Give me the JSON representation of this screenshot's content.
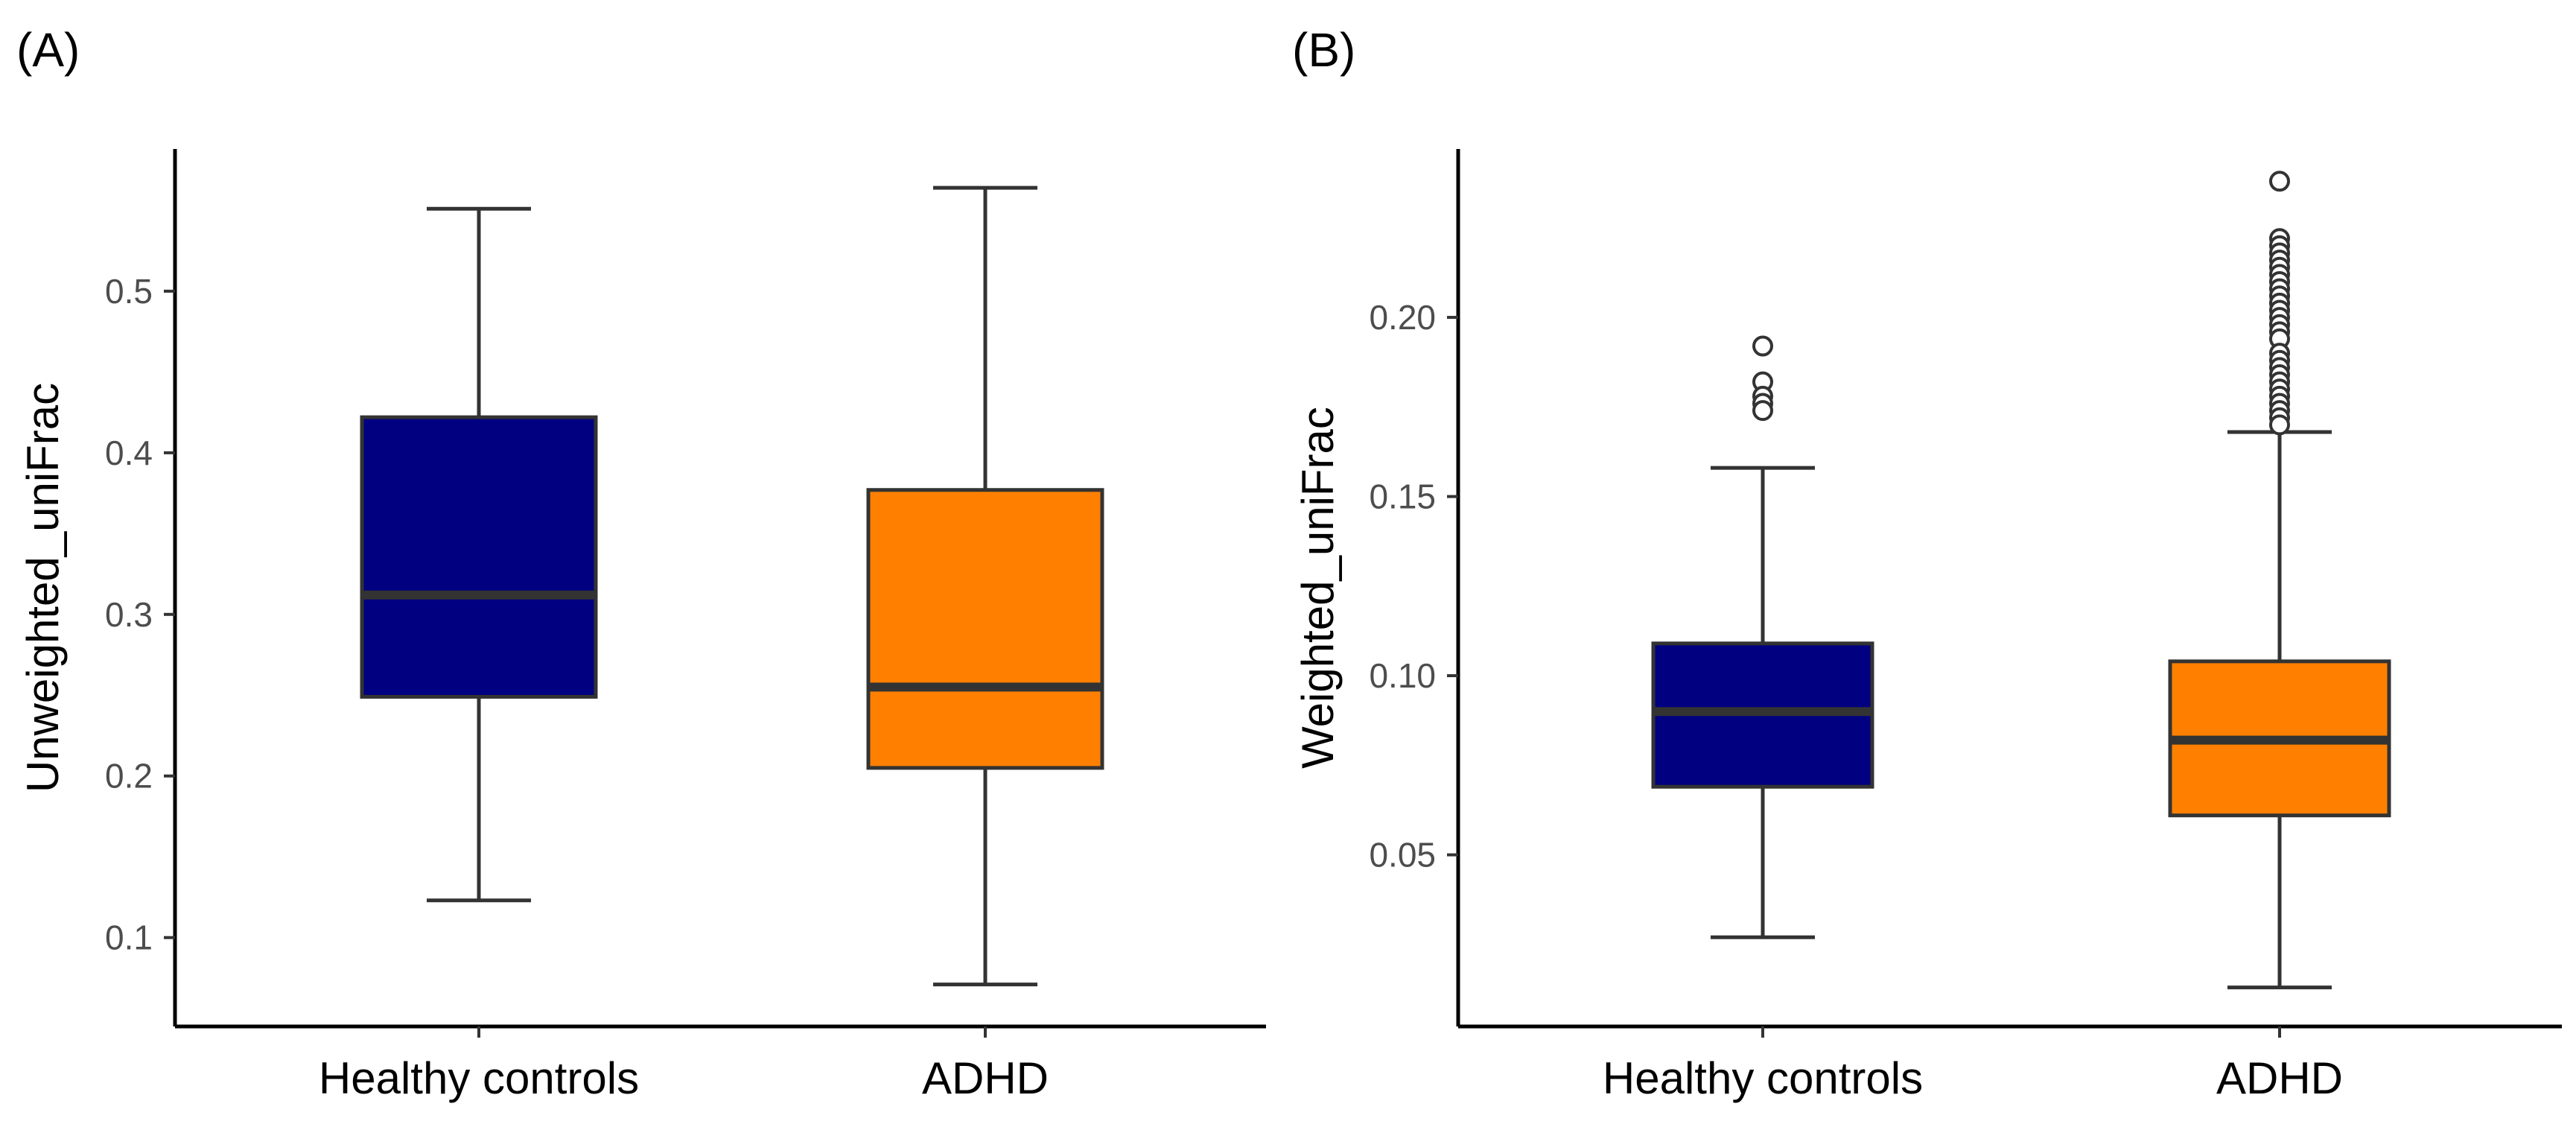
{
  "panels": [
    {
      "label": "(A)"
    },
    {
      "label": "(B)"
    }
  ],
  "chart_data": [
    {
      "type": "box",
      "panel": "(A)",
      "ylabel": "Unweighted_uniFrac",
      "xlabel": "",
      "categories": [
        "Healthy controls",
        "ADHD"
      ],
      "ylim": [
        0.045,
        0.588
      ],
      "yticks": [
        0.1,
        0.2,
        0.3,
        0.4,
        0.5
      ],
      "ytick_labels": [
        "0.1",
        "0.2",
        "0.3",
        "0.4",
        "0.5"
      ],
      "grid": false,
      "boxes": [
        {
          "category": "Healthy controls",
          "color": "#000080",
          "whisker_low": 0.123,
          "q1": 0.249,
          "median": 0.312,
          "q3": 0.422,
          "whisker_high": 0.551,
          "outliers": []
        },
        {
          "category": "ADHD",
          "color": "#FF8000",
          "whisker_low": 0.071,
          "q1": 0.205,
          "median": 0.255,
          "q3": 0.377,
          "whisker_high": 0.564,
          "outliers": []
        }
      ]
    },
    {
      "type": "box",
      "panel": "(B)",
      "ylabel": "Weighted_uniFrac",
      "xlabel": "",
      "categories": [
        "Healthy controls",
        "ADHD"
      ],
      "ylim": [
        0.0021,
        0.247
      ],
      "yticks": [
        0.05,
        0.1,
        0.15,
        0.2
      ],
      "ytick_labels": [
        "0.05",
        "0.10",
        "0.15",
        "0.20"
      ],
      "grid": false,
      "boxes": [
        {
          "category": "Healthy controls",
          "color": "#000080",
          "whisker_low": 0.027,
          "q1": 0.069,
          "median": 0.09,
          "q3": 0.109,
          "whisker_high": 0.158,
          "outliers": [
            0.192,
            0.182,
            0.178,
            0.176,
            0.174
          ]
        },
        {
          "category": "ADHD",
          "color": "#FF8000",
          "whisker_low": 0.013,
          "q1": 0.061,
          "median": 0.082,
          "q3": 0.104,
          "whisker_high": 0.168,
          "outliers": [
            0.238,
            0.222,
            0.22,
            0.218,
            0.216,
            0.214,
            0.212,
            0.21,
            0.208,
            0.206,
            0.204,
            0.202,
            0.2,
            0.198,
            0.196,
            0.194,
            0.19,
            0.188,
            0.186,
            0.184,
            0.182,
            0.18,
            0.178,
            0.176,
            0.174,
            0.172,
            0.17
          ]
        }
      ]
    }
  ]
}
